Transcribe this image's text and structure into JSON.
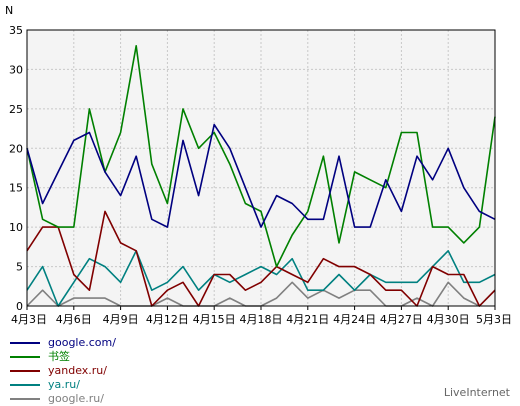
{
  "brand": "LiveInternet",
  "chart_data": {
    "type": "line",
    "ylabel": "N",
    "ylim": [
      0,
      35
    ],
    "yticks": [
      0,
      5,
      10,
      15,
      20,
      25,
      30,
      35
    ],
    "grid": true,
    "x_tick_labels": [
      "4月3日",
      "4月6日",
      "4月9日",
      "4月12日",
      "4月15日",
      "4月18日",
      "4月21日",
      "4月24日",
      "4月27日",
      "4月30日",
      "5月3日"
    ],
    "x_tick_every": 3,
    "legend_placement": "bottom-left",
    "series": [
      {
        "name": "google.com/",
        "color": "#000080",
        "values": [
          20,
          13,
          17,
          21,
          22,
          17,
          14,
          19,
          11,
          10,
          21,
          14,
          23,
          20,
          15,
          10,
          14,
          13,
          11,
          11,
          19,
          10,
          10,
          16,
          12,
          19,
          16,
          20,
          15,
          12,
          11
        ]
      },
      {
        "name": "书签",
        "color": "#008000",
        "values": [
          20,
          11,
          10,
          10,
          25,
          17,
          22,
          33,
          18,
          13,
          25,
          20,
          22,
          18,
          13,
          12,
          5,
          9,
          12,
          19,
          8,
          17,
          16,
          15,
          22,
          22,
          10,
          10,
          8,
          10,
          24
        ]
      },
      {
        "name": "yandex.ru/",
        "color": "#800000",
        "values": [
          7,
          10,
          10,
          4,
          2,
          12,
          8,
          7,
          0,
          2,
          3,
          0,
          4,
          4,
          2,
          3,
          5,
          4,
          3,
          6,
          5,
          5,
          4,
          2,
          2,
          0,
          5,
          4,
          4,
          0,
          2
        ]
      },
      {
        "name": "ya.ru/",
        "color": "#008080",
        "values": [
          2,
          5,
          0,
          3,
          6,
          5,
          3,
          7,
          2,
          3,
          5,
          2,
          4,
          3,
          4,
          5,
          4,
          6,
          2,
          2,
          4,
          2,
          4,
          3,
          3,
          3,
          5,
          7,
          3,
          3,
          4
        ]
      },
      {
        "name": "google.ru/",
        "color": "#808080",
        "values": [
          0,
          2,
          0,
          1,
          1,
          1,
          0,
          0,
          0,
          1,
          0,
          0,
          0,
          1,
          0,
          0,
          1,
          3,
          1,
          2,
          1,
          2,
          2,
          0,
          0,
          1,
          0,
          3,
          1,
          0,
          2
        ]
      }
    ]
  }
}
